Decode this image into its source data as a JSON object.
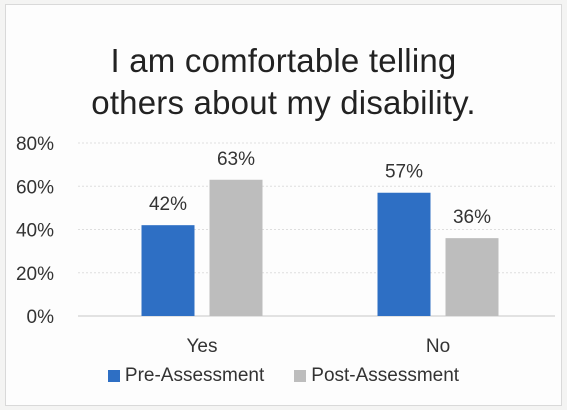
{
  "chart_data": {
    "type": "bar",
    "title": [
      "I am comfortable telling",
      "others about my disability."
    ],
    "categories": [
      "Yes",
      "No"
    ],
    "series": [
      {
        "name": "Pre-Assessment",
        "values": [
          42,
          57
        ],
        "labels": [
          "42%",
          "57%"
        ],
        "color": "#2e6fc4"
      },
      {
        "name": "Post-Assessment",
        "values": [
          63,
          36
        ],
        "labels": [
          "63%",
          "36%"
        ],
        "color": "#bdbdbd"
      }
    ],
    "ylim": [
      0,
      80
    ],
    "yticks": [
      0,
      20,
      40,
      60,
      80
    ],
    "ytick_labels": [
      "0%",
      "20%",
      "40%",
      "60%",
      "80%"
    ],
    "grid": true,
    "legend_position": "bottom"
  }
}
